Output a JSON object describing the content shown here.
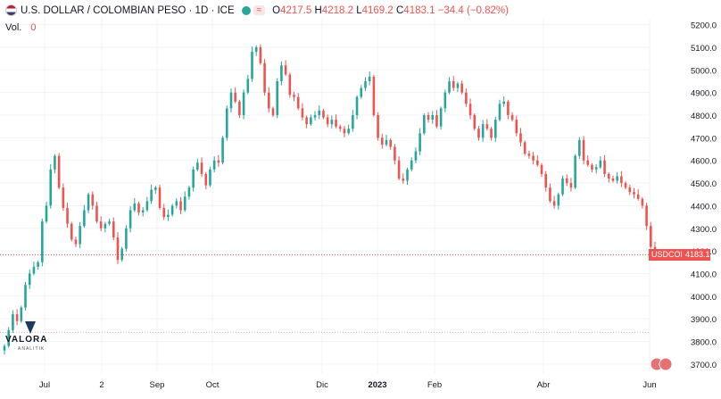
{
  "header": {
    "symbol_title": "U.S. DOLLAR / COLOMBIAN PESO · 1D · ICE",
    "badge": "≈",
    "open_label": "O",
    "open": "4217.5",
    "high_label": "H",
    "high": "4218.2",
    "low_label": "L",
    "low": "4169.2",
    "close_label": "C",
    "close": "4183.1",
    "change": "−34.4 (−0.82%)",
    "volume_label": "Vol.",
    "volume_value": "0"
  },
  "price_tag": {
    "symbol": "USDCOP",
    "value": "4183.1"
  },
  "logo": {
    "name": "VALORA",
    "sub": "ANALITIK"
  },
  "colors": {
    "up": "#26a69a",
    "down": "#ef5350",
    "grid": "#f0f3fa",
    "axis_text": "#131722"
  },
  "chart_data": {
    "type": "candlestick",
    "x_tick_labels": [
      "Jul",
      "2",
      "Sep",
      "Oct",
      "Dic",
      "2023",
      "Feb",
      "Abr",
      "Jun"
    ],
    "y_tick_labels": [
      "3700.0",
      "3800.0",
      "3900.0",
      "4000.0",
      "4100.0",
      "4200.0",
      "4300.0",
      "4400.0",
      "4500.0",
      "4600.0",
      "4700.0",
      "4800.0",
      "4900.0",
      "5000.0",
      "5100.0",
      "5200.0"
    ],
    "ylim": [
      3660,
      5230
    ],
    "last_close": 4183.1,
    "close_series": [
      3780,
      3850,
      3920,
      3890,
      3950,
      4050,
      4100,
      4130,
      4150,
      4330,
      4400,
      4560,
      4620,
      4480,
      4390,
      4320,
      4250,
      4230,
      4310,
      4380,
      4450,
      4400,
      4330,
      4300,
      4320,
      4330,
      4260,
      4160,
      4210,
      4300,
      4380,
      4410,
      4370,
      4380,
      4420,
      4470,
      4480,
      4390,
      4350,
      4360,
      4400,
      4420,
      4380,
      4440,
      4480,
      4560,
      4590,
      4540,
      4490,
      4560,
      4600,
      4590,
      4700,
      4830,
      4900,
      4860,
      4800,
      4900,
      4960,
      5080,
      5100,
      5030,
      4900,
      4830,
      4800,
      4950,
      5020,
      4980,
      4890,
      4880,
      4830,
      4790,
      4760,
      4790,
      4800,
      4820,
      4790,
      4760,
      4780,
      4750,
      4740,
      4720,
      4740,
      4800,
      4880,
      4920,
      4950,
      4970,
      4800,
      4700,
      4670,
      4690,
      4660,
      4600,
      4520,
      4510,
      4560,
      4600,
      4640,
      4720,
      4800,
      4780,
      4800,
      4750,
      4830,
      4900,
      4950,
      4920,
      4940,
      4900,
      4850,
      4800,
      4740,
      4700,
      4760,
      4740,
      4700,
      4780,
      4850,
      4860,
      4800,
      4780,
      4720,
      4680,
      4630,
      4620,
      4600,
      4580,
      4540,
      4480,
      4420,
      4400,
      4450,
      4520,
      4500,
      4480,
      4620,
      4690,
      4600,
      4580,
      4560,
      4570,
      4600,
      4540,
      4520,
      4510,
      4530,
      4500,
      4480,
      4460,
      4450,
      4430,
      4400,
      4310,
      4217.5,
      4183.1
    ]
  }
}
